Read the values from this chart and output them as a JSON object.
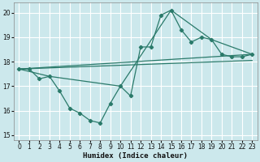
{
  "xlabel": "Humidex (Indice chaleur)",
  "bg_color": "#cce8ec",
  "grid_color": "#ffffff",
  "line_color": "#2a7a6a",
  "xlim": [
    -0.5,
    23.5
  ],
  "ylim": [
    14.8,
    20.4
  ],
  "yticks": [
    15,
    16,
    17,
    18,
    19,
    20
  ],
  "xticks": [
    0,
    1,
    2,
    3,
    4,
    5,
    6,
    7,
    8,
    9,
    10,
    11,
    12,
    13,
    14,
    15,
    16,
    17,
    18,
    19,
    20,
    21,
    22,
    23
  ],
  "curve1_x": [
    0,
    1,
    2,
    3,
    4,
    5,
    6,
    7,
    8,
    9,
    10,
    11,
    12,
    13,
    14,
    15,
    16,
    17,
    18,
    19,
    20,
    21,
    22,
    23
  ],
  "curve1_y": [
    17.7,
    17.7,
    17.3,
    17.4,
    16.8,
    16.1,
    15.9,
    15.6,
    15.5,
    16.3,
    17.0,
    16.6,
    18.6,
    18.6,
    19.9,
    20.1,
    19.3,
    18.8,
    19.0,
    18.9,
    18.3,
    18.2,
    18.2,
    18.3
  ],
  "line1_x": [
    0,
    23
  ],
  "line1_y": [
    17.7,
    18.3
  ],
  "line2_x": [
    0,
    23
  ],
  "line2_y": [
    17.7,
    18.05
  ],
  "connector_x": [
    0,
    3,
    10,
    15,
    19,
    23
  ],
  "connector_y": [
    17.7,
    17.4,
    17.0,
    20.1,
    18.9,
    18.3
  ]
}
